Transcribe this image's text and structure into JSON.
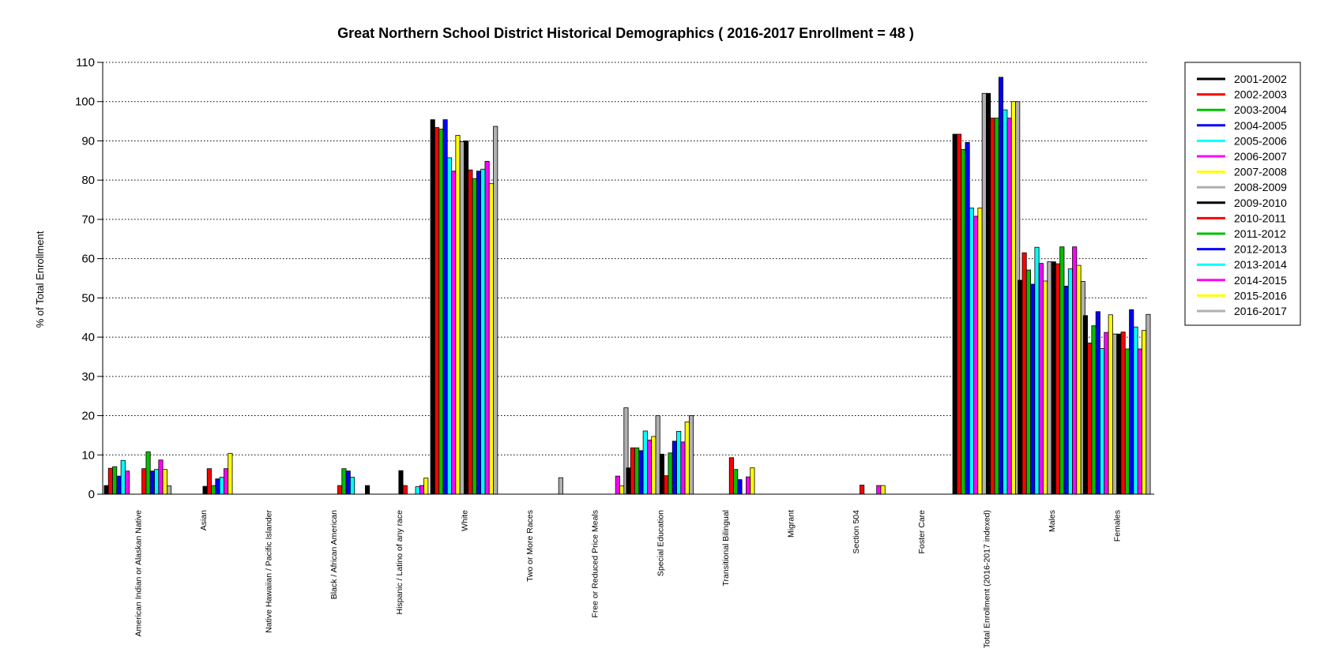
{
  "chart_data": {
    "type": "bar",
    "title": "Great Northern School District Historical Demographics  ( 2016-2017 Enrollment =  48 )",
    "ylabel": "% of Total Enrollment",
    "xlabel": "",
    "ylim": [
      0,
      110
    ],
    "yticks": [
      "0",
      "10",
      "20",
      "30",
      "40",
      "50",
      "60",
      "70",
      "80",
      "90",
      "100",
      "110"
    ],
    "grid": "horizontal dotted",
    "legend_position": "right",
    "categories": [
      "American Indian or Alaskan Native",
      "Asian",
      "Native Hawaiian / Pacific Islander",
      "Black / African American",
      "Hispanic / Latino of any race",
      "White",
      "Two or More Races",
      "Free or Reduced Price Meals",
      "Special Education",
      "Transitional Bilingual",
      "Migrant",
      "Section 504",
      "Foster Care",
      "Total Enrollment (2016-2017 indexed)",
      "Males",
      "Females"
    ],
    "series": [
      {
        "name": "2001-2002",
        "color": "#000000",
        "values": [
          2.2,
          0,
          0,
          0,
          2.2,
          95.4,
          0,
          0,
          6.7,
          0,
          0,
          0,
          0,
          91.7,
          54.5,
          45.5
        ]
      },
      {
        "name": "2002-2003",
        "color": "#ff0000",
        "values": [
          6.6,
          0,
          0,
          0,
          0,
          93.4,
          0,
          0,
          11.8,
          0,
          0,
          0,
          0,
          91.7,
          61.5,
          38.5
        ]
      },
      {
        "name": "2003-2004",
        "color": "#00c000",
        "values": [
          7.0,
          0,
          0,
          0,
          0,
          93.0,
          0,
          0,
          11.8,
          0,
          0,
          0,
          0,
          87.8,
          57.1,
          42.9
        ]
      },
      {
        "name": "2004-2005",
        "color": "#0000ff",
        "values": [
          4.6,
          0,
          0,
          0,
          0,
          95.4,
          0,
          0,
          11.1,
          0,
          0,
          0,
          0,
          89.6,
          53.5,
          46.5
        ]
      },
      {
        "name": "2005-2006",
        "color": "#00ffff",
        "values": [
          8.6,
          0,
          0,
          0,
          0,
          85.7,
          0,
          0,
          16.1,
          0,
          0,
          0,
          0,
          72.9,
          62.9,
          37.1
        ]
      },
      {
        "name": "2006-2007",
        "color": "#ff00ff",
        "values": [
          5.9,
          0,
          0,
          0,
          0,
          82.3,
          0,
          0,
          13.8,
          0,
          0,
          0,
          0,
          70.8,
          58.8,
          41.2
        ]
      },
      {
        "name": "2007-2008",
        "color": "#ffff00",
        "values": [
          0,
          0,
          0,
          0,
          0,
          91.4,
          0,
          0,
          14.7,
          0,
          0,
          0,
          0,
          72.9,
          54.3,
          45.7
        ]
      },
      {
        "name": "2008-2009",
        "color": "#b0b0b0",
        "values": [
          0,
          0,
          0,
          0,
          0,
          89.8,
          0,
          0,
          20.0,
          0,
          0,
          0,
          0,
          102.1,
          59.2,
          40.8
        ]
      },
      {
        "name": "2009-2010",
        "color": "#000000",
        "values": [
          0,
          2.0,
          0,
          0,
          6.0,
          90.0,
          0,
          0,
          10.2,
          0,
          0,
          0,
          0,
          102.1,
          59.2,
          40.8
        ]
      },
      {
        "name": "2010-2011",
        "color": "#ff0000",
        "values": [
          6.5,
          6.5,
          0,
          2.2,
          2.2,
          82.6,
          0,
          0,
          4.7,
          9.3,
          0,
          2.3,
          0,
          95.8,
          58.7,
          41.3
        ]
      },
      {
        "name": "2011-2012",
        "color": "#00c000",
        "values": [
          10.8,
          2.2,
          0,
          6.5,
          0,
          80.4,
          0,
          0,
          10.5,
          6.3,
          0,
          0,
          0,
          95.8,
          63.0,
          37.0
        ]
      },
      {
        "name": "2012-2013",
        "color": "#0000ff",
        "values": [
          5.9,
          3.9,
          0,
          5.9,
          0,
          82.3,
          0,
          0,
          13.5,
          3.7,
          0,
          0,
          0,
          106.2,
          53.0,
          47.0
        ]
      },
      {
        "name": "2013-2014",
        "color": "#00ffff",
        "values": [
          6.3,
          4.3,
          0,
          4.3,
          1.9,
          82.8,
          0,
          0,
          16.0,
          0,
          0,
          0,
          0,
          97.9,
          57.4,
          42.6
        ]
      },
      {
        "name": "2014-2015",
        "color": "#ff00ff",
        "values": [
          8.7,
          6.5,
          0,
          0,
          2.2,
          84.8,
          0,
          4.6,
          13.3,
          4.4,
          0,
          2.2,
          0,
          95.8,
          63.0,
          37.0
        ]
      },
      {
        "name": "2015-2016",
        "color": "#ffff00",
        "values": [
          6.3,
          10.4,
          0,
          0,
          4.1,
          79.1,
          0,
          2.1,
          18.4,
          6.7,
          0,
          2.2,
          0,
          100.0,
          58.3,
          41.7
        ]
      },
      {
        "name": "2016-2017",
        "color": "#b0b0b0",
        "values": [
          2.1,
          0,
          0,
          0,
          0,
          93.7,
          4.2,
          22.0,
          20.0,
          0,
          0,
          0,
          0,
          100.0,
          54.2,
          45.8
        ]
      }
    ]
  }
}
